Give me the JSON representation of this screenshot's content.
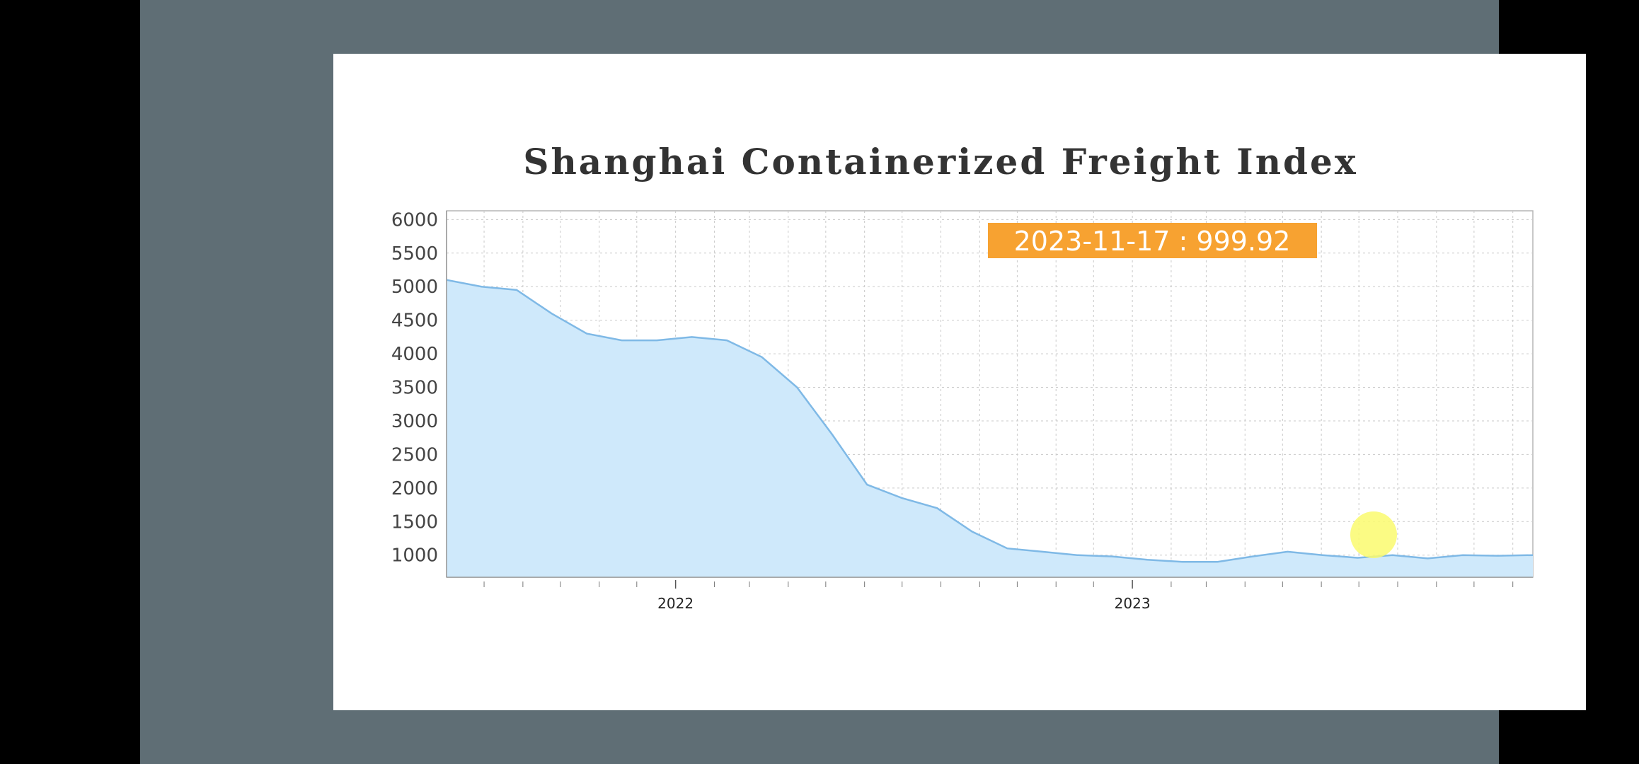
{
  "chart_data": {
    "type": "area",
    "title": "Shanghai Containerized Freight Index",
    "xlabel": "",
    "ylabel": "",
    "x_ticks": [
      "2022",
      "2023"
    ],
    "y_ticks": [
      1000,
      1500,
      2000,
      2500,
      3000,
      3500,
      4000,
      4500,
      5000,
      5500,
      6000
    ],
    "ylim": [
      670,
      6130
    ],
    "xlim": [
      "2021-07-02",
      "2023-11-17"
    ],
    "grid": true,
    "tooltip": {
      "date": "2023-11-17",
      "value": "999.92",
      "text": "2023-11-17 : 999.92"
    },
    "colors": {
      "fill": "#cfe9fb",
      "line": "#7fb9e6",
      "tooltip": "#f7a231",
      "highlight": "#fafa6e"
    },
    "series": [
      {
        "x": [
          "2021-07-02",
          "2021-07-30",
          "2021-08-27",
          "2021-09-24",
          "2021-10-22",
          "2021-11-19",
          "2021-12-17",
          "2022-01-14",
          "2022-02-11",
          "2022-03-11",
          "2022-04-08",
          "2022-05-06",
          "2022-06-03",
          "2022-07-01",
          "2022-07-29",
          "2022-08-26",
          "2022-09-23",
          "2022-10-21",
          "2022-11-18",
          "2022-12-16",
          "2023-01-13",
          "2023-02-10",
          "2023-03-10",
          "2023-04-07",
          "2023-05-05",
          "2023-06-02",
          "2023-06-30",
          "2023-07-28",
          "2023-08-25",
          "2023-09-22",
          "2023-10-20",
          "2023-11-17"
        ],
        "values": [
          5100,
          5000,
          4950,
          4600,
          4300,
          4200,
          4200,
          4250,
          4200,
          3950,
          3500,
          2800,
          2050,
          1850,
          1700,
          1350,
          1100,
          1050,
          1000,
          980,
          930,
          900,
          900,
          980,
          1050,
          1000,
          960,
          1000,
          950,
          1000,
          990,
          1000
        ]
      }
    ]
  }
}
